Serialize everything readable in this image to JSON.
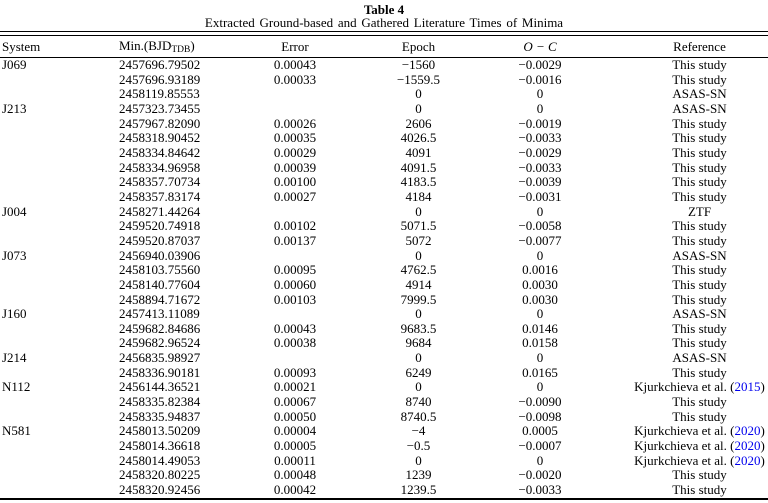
{
  "colors": {
    "text": "#000000",
    "background": "#ffffff",
    "reference_link": "#0000EE"
  },
  "caption": {
    "label": "Table 4",
    "title": "Extracted Ground-based and Gathered Literature Times of Minima"
  },
  "table": {
    "columns": {
      "system": "System",
      "min_pre": "Min.(BJD",
      "min_sub": "TDB",
      "min_post": ")",
      "error": "Error",
      "epoch": "Epoch",
      "oc": "O − C",
      "reference": "Reference"
    },
    "rows": [
      {
        "system": "J069",
        "min": "2457696.79502",
        "error": "0.00043",
        "epoch": "−1560",
        "oc": "−0.0029",
        "ref": "This study"
      },
      {
        "system": "",
        "min": "2457696.93189",
        "error": "0.00033",
        "epoch": "−1559.5",
        "oc": "−0.0016",
        "ref": "This study"
      },
      {
        "system": "",
        "min": "2458119.85553",
        "error": "",
        "epoch": "0",
        "oc": "0",
        "ref": "ASAS-SN"
      },
      {
        "system": "J213",
        "min": "2457323.73455",
        "error": "",
        "epoch": "0",
        "oc": "0",
        "ref": "ASAS-SN"
      },
      {
        "system": "",
        "min": "2457967.82090",
        "error": "0.00026",
        "epoch": "2606",
        "oc": "−0.0019",
        "ref": "This study"
      },
      {
        "system": "",
        "min": "2458318.90452",
        "error": "0.00035",
        "epoch": "4026.5",
        "oc": "−0.0033",
        "ref": "This study"
      },
      {
        "system": "",
        "min": "2458334.84642",
        "error": "0.00029",
        "epoch": "4091",
        "oc": "−0.0029",
        "ref": "This study"
      },
      {
        "system": "",
        "min": "2458334.96958",
        "error": "0.00039",
        "epoch": "4091.5",
        "oc": "−0.0033",
        "ref": "This study"
      },
      {
        "system": "",
        "min": "2458357.70734",
        "error": "0.00100",
        "epoch": "4183.5",
        "oc": "−0.0039",
        "ref": "This study"
      },
      {
        "system": "",
        "min": "2458357.83174",
        "error": "0.00027",
        "epoch": "4184",
        "oc": "−0.0031",
        "ref": "This study"
      },
      {
        "system": "J004",
        "min": "2458271.44264",
        "error": "",
        "epoch": "0",
        "oc": "0",
        "ref": "ZTF"
      },
      {
        "system": "",
        "min": "2459520.74918",
        "error": "0.00102",
        "epoch": "5071.5",
        "oc": "−0.0058",
        "ref": "This study"
      },
      {
        "system": "",
        "min": "2459520.87037",
        "error": "0.00137",
        "epoch": "5072",
        "oc": "−0.0077",
        "ref": "This study"
      },
      {
        "system": "J073",
        "min": "2456940.03906",
        "error": "",
        "epoch": "0",
        "oc": "0",
        "ref": "ASAS-SN"
      },
      {
        "system": "",
        "min": "2458103.75560",
        "error": "0.00095",
        "epoch": "4762.5",
        "oc": "0.0016",
        "ref": "This study"
      },
      {
        "system": "",
        "min": "2458140.77604",
        "error": "0.00060",
        "epoch": "4914",
        "oc": "0.0030",
        "ref": "This study"
      },
      {
        "system": "",
        "min": "2458894.71672",
        "error": "0.00103",
        "epoch": "7999.5",
        "oc": "0.0030",
        "ref": "This study"
      },
      {
        "system": "J160",
        "min": "2457413.11089",
        "error": "",
        "epoch": "0",
        "oc": "0",
        "ref": "ASAS-SN"
      },
      {
        "system": "",
        "min": "2459682.84686",
        "error": "0.00043",
        "epoch": "9683.5",
        "oc": "0.0146",
        "ref": "This study"
      },
      {
        "system": "",
        "min": "2459682.96524",
        "error": "0.00038",
        "epoch": "9684",
        "oc": "0.0158",
        "ref": "This study"
      },
      {
        "system": "J214",
        "min": "2456835.98927",
        "error": "",
        "epoch": "0",
        "oc": "0",
        "ref": "ASAS-SN"
      },
      {
        "system": "",
        "min": "2458336.90181",
        "error": "0.00093",
        "epoch": "6249",
        "oc": "0.0165",
        "ref": "This study"
      },
      {
        "system": "N112",
        "min": "2456144.36521",
        "error": "0.00021",
        "epoch": "0",
        "oc": "0",
        "ref": "Kjurkchieva et al.",
        "ref_year": "2015"
      },
      {
        "system": "",
        "min": "2458335.82384",
        "error": "0.00067",
        "epoch": "8740",
        "oc": "−0.0090",
        "ref": "This study"
      },
      {
        "system": "",
        "min": "2458335.94837",
        "error": "0.00050",
        "epoch": "8740.5",
        "oc": "−0.0098",
        "ref": "This study"
      },
      {
        "system": "N581",
        "min": "2458013.50209",
        "error": "0.00004",
        "epoch": "−4",
        "oc": "0.0005",
        "ref": "Kjurkchieva et al.",
        "ref_year": "2020"
      },
      {
        "system": "",
        "min": "2458014.36618",
        "error": "0.00005",
        "epoch": "−0.5",
        "oc": "−0.0007",
        "ref": "Kjurkchieva et al.",
        "ref_year": "2020"
      },
      {
        "system": "",
        "min": "2458014.49053",
        "error": "0.00011",
        "epoch": "0",
        "oc": "0",
        "ref": "Kjurkchieva et al.",
        "ref_year": "2020"
      },
      {
        "system": "",
        "min": "2458320.80225",
        "error": "0.00048",
        "epoch": "1239",
        "oc": "−0.0020",
        "ref": "This study"
      },
      {
        "system": "",
        "min": "2458320.92456",
        "error": "0.00042",
        "epoch": "1239.5",
        "oc": "−0.0033",
        "ref": "This study"
      }
    ]
  }
}
